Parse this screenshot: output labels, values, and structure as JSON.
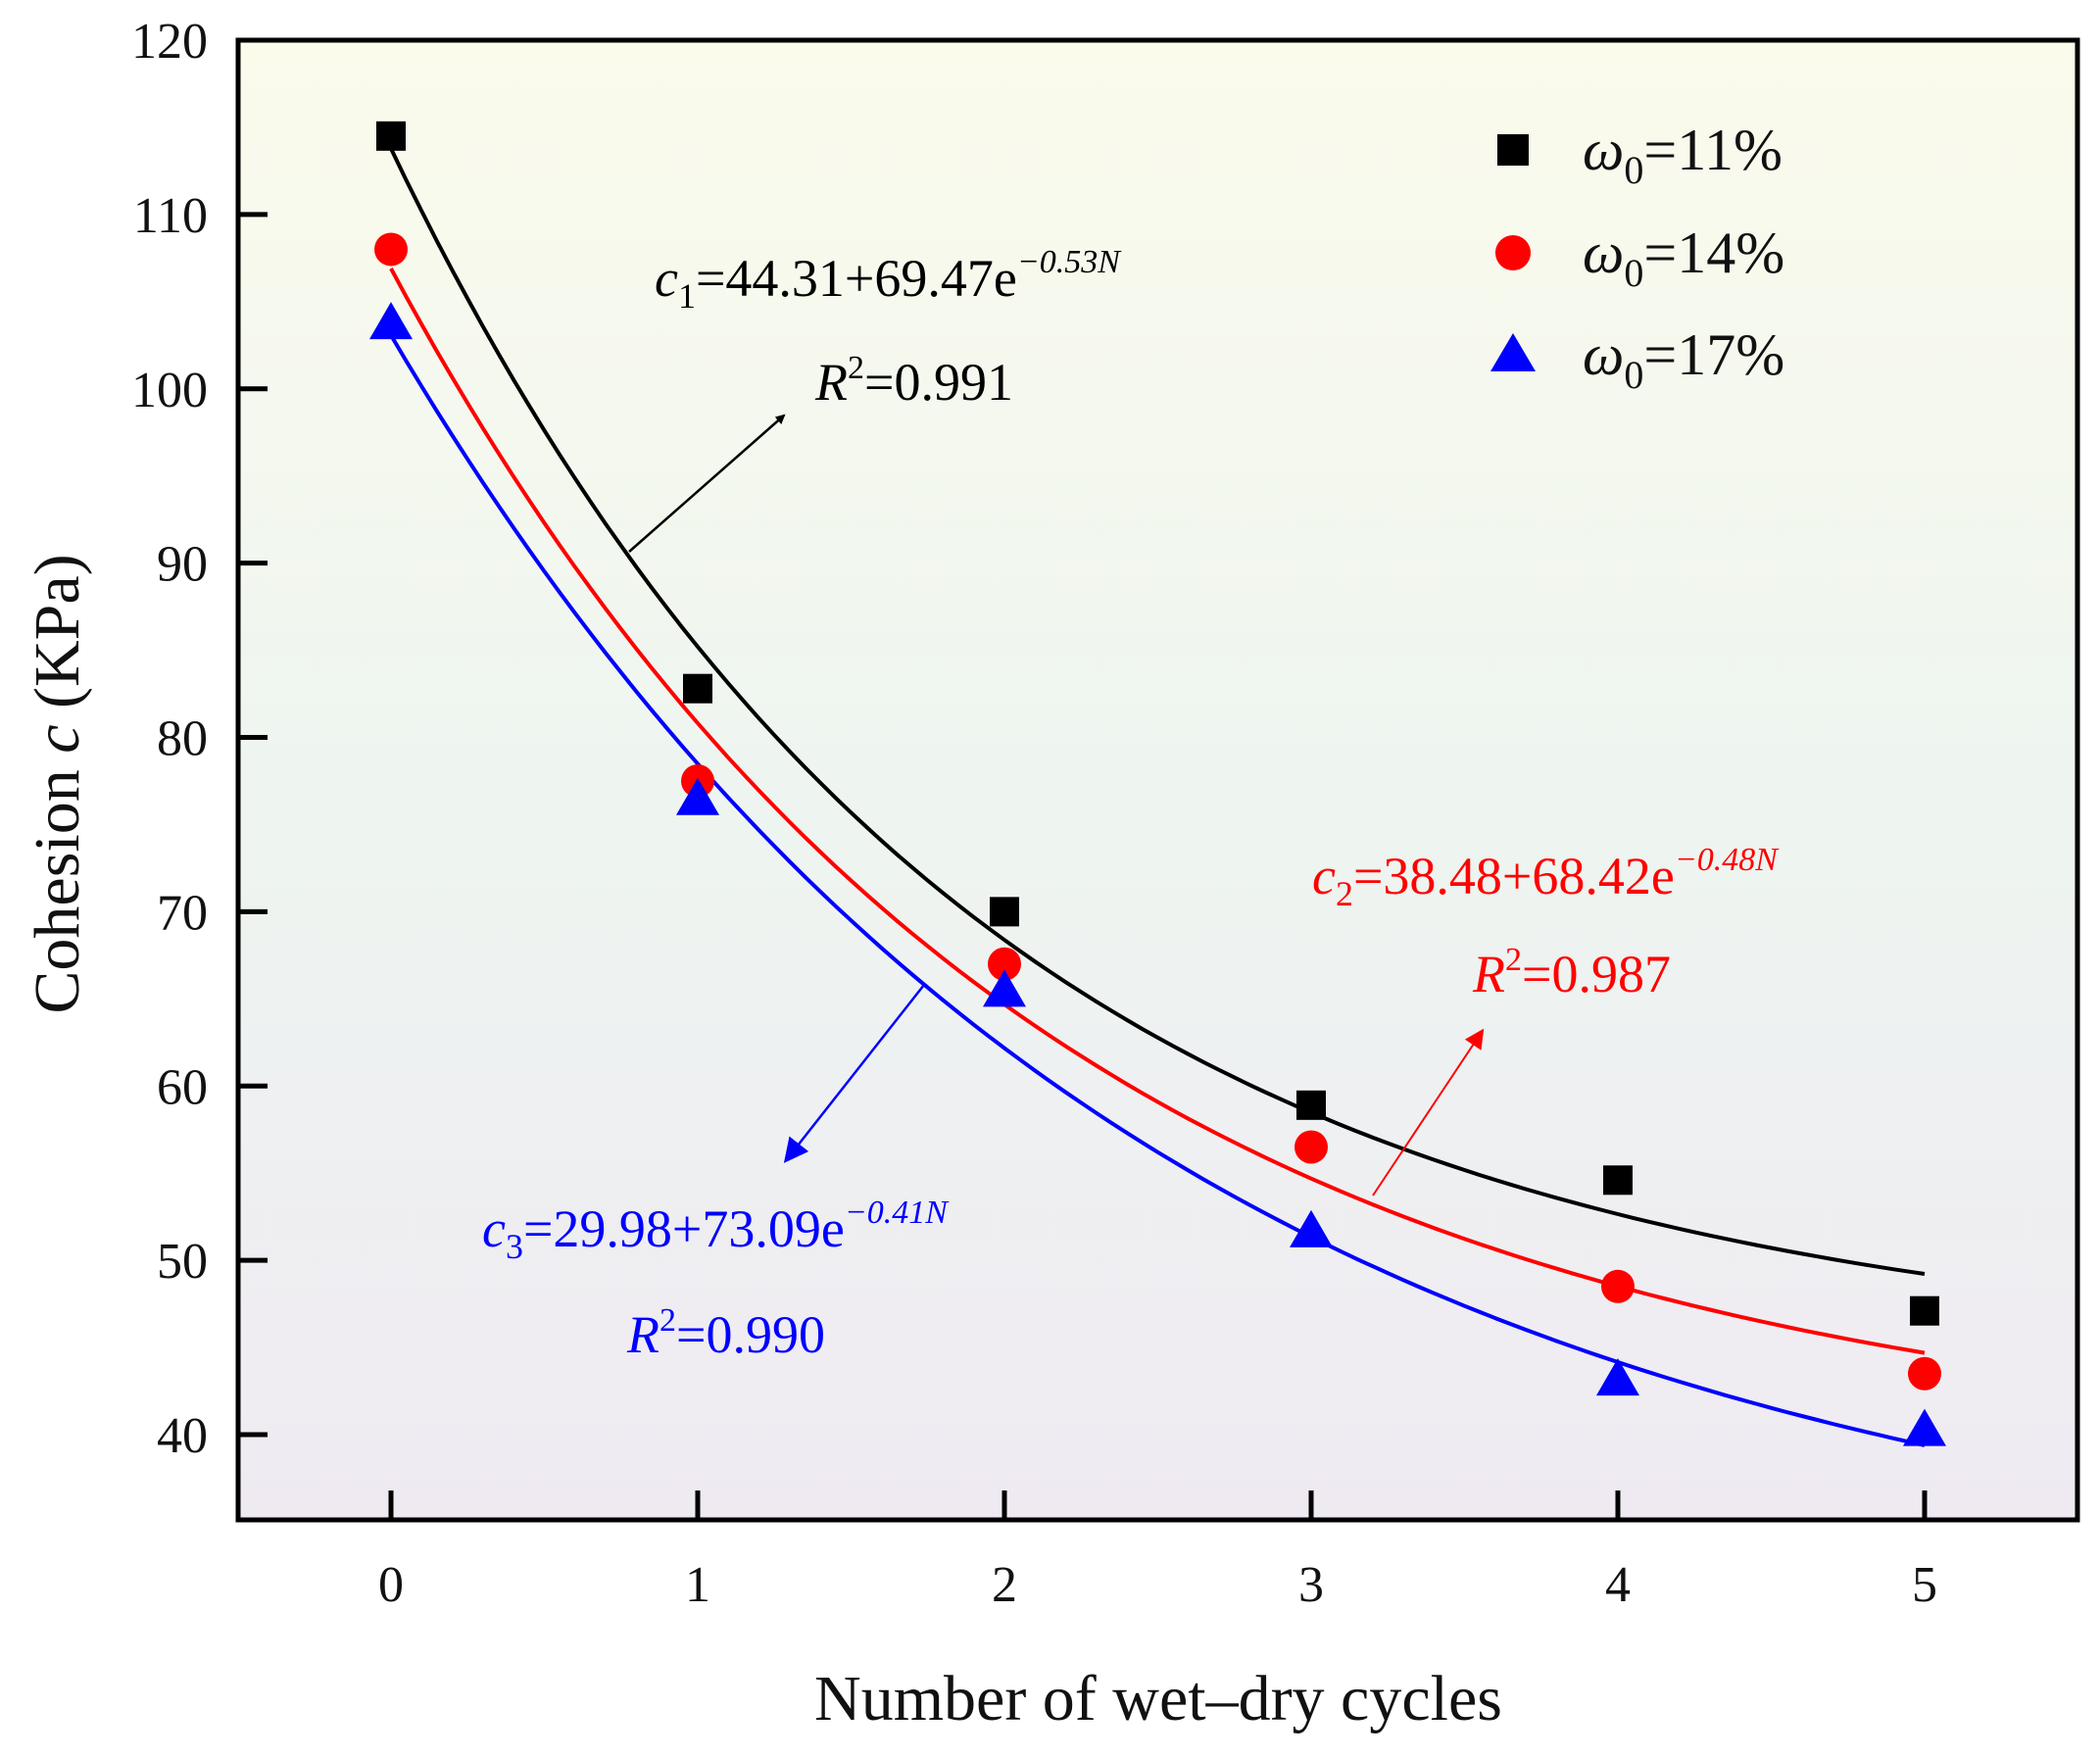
{
  "chart_data": {
    "type": "scatter",
    "title": "",
    "xlabel": "Number of wet–dry cycles",
    "ylabel_prefix": "Cohesion ",
    "ylabel_var": "c",
    "ylabel_suffix": " (KPa)",
    "xlim": [
      -0.5,
      5.5
    ],
    "ylim": [
      35,
      120
    ],
    "xticks": [
      "0",
      "1",
      "2",
      "3",
      "4",
      "5"
    ],
    "yticks": [
      "40",
      "50",
      "60",
      "70",
      "80",
      "90",
      "100",
      "110",
      "120"
    ],
    "grid": false,
    "legend_position": "top-right",
    "x": [
      0,
      1,
      2,
      3,
      4,
      5
    ],
    "series": [
      {
        "name": "ω",
        "sub": "0",
        "label": "=11%",
        "marker": "square",
        "color": "#000000",
        "values": [
          114.5,
          82.8,
          70.0,
          58.9,
          54.6,
          47.1
        ],
        "fit": {
          "a": 44.31,
          "b": 69.47,
          "k": 0.53
        },
        "eq_var": "c",
        "eq_sub": "1",
        "eq_text": "=44.31+69.47e",
        "eq_exp": "−0.53N",
        "r2_var": "R",
        "r2_sup": "2",
        "r2_text": "=0.991"
      },
      {
        "name": "ω",
        "sub": "0",
        "label": "=14%",
        "marker": "circle",
        "color": "#ff0000",
        "values": [
          108.0,
          77.5,
          67.0,
          56.5,
          48.5,
          43.5
        ],
        "fit": {
          "a": 38.48,
          "b": 68.42,
          "k": 0.48
        },
        "eq_var": "c",
        "eq_sub": "2",
        "eq_text": "=38.48+68.42e",
        "eq_exp": "−0.48N",
        "r2_var": "R",
        "r2_sup": "2",
        "r2_text": "=0.987"
      },
      {
        "name": "ω",
        "sub": "0",
        "label": "=17%",
        "marker": "triangle",
        "color": "#0000ff",
        "values": [
          103.8,
          76.5,
          65.5,
          51.7,
          43.2,
          40.3
        ],
        "fit": {
          "a": 29.98,
          "b": 73.09,
          "k": 0.41
        },
        "eq_var": "c",
        "eq_sub": "3",
        "eq_text": "=29.98+73.09e",
        "eq_exp": "−0.41N",
        "r2_var": "R",
        "r2_sup": "2",
        "r2_text": "=0.990"
      }
    ]
  }
}
